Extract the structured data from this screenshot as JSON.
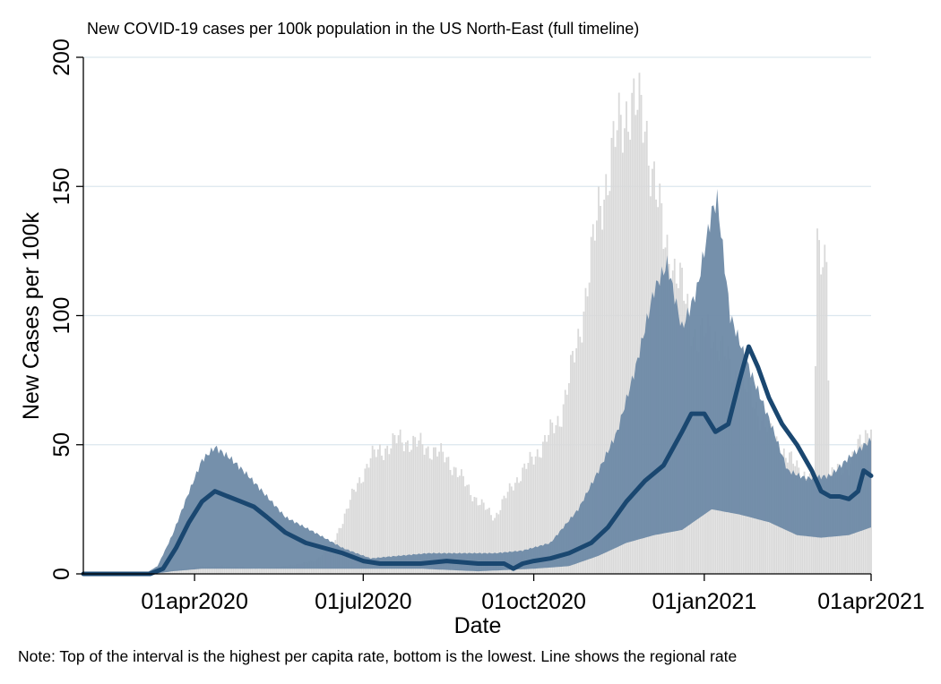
{
  "chart_data": {
    "type": "area",
    "title": "New COVID-19 cases per 100k population in the US North-East (full timeline)",
    "xlabel": "Date",
    "ylabel": "New Cases per 100k",
    "note": "Note: Top of the interval is the highest per capita rate, bottom is the lowest. Line shows the regional rate",
    "ylim": [
      0,
      200
    ],
    "xlim": [
      "2020-02-01",
      "2021-04-01"
    ],
    "y_ticks": [
      0,
      50,
      100,
      150,
      200
    ],
    "x_ticks": [
      {
        "date": "2020-04-01",
        "label": "01apr2020"
      },
      {
        "date": "2020-07-01",
        "label": "01jul2020"
      },
      {
        "date": "2020-10-01",
        "label": "01oct2020"
      },
      {
        "date": "2021-01-01",
        "label": "01jan2021"
      },
      {
        "date": "2021-04-01",
        "label": "01apr2021"
      }
    ],
    "grid": "horizontal",
    "colors": {
      "daily_bars": "#d9d9d9",
      "interval_fill": "#6e8aa6",
      "regional_line": "#1a4770",
      "grid": "#dce6ee"
    },
    "series": [
      {
        "kind": "daily_bars",
        "points": [
          [
            "2020-02-01",
            0
          ],
          [
            "2020-03-01",
            0
          ],
          [
            "2020-03-15",
            1
          ],
          [
            "2020-03-25",
            2
          ],
          [
            "2020-04-05",
            3
          ],
          [
            "2020-04-20",
            3
          ],
          [
            "2020-05-05",
            2
          ],
          [
            "2020-05-20",
            3
          ],
          [
            "2020-06-05",
            5
          ],
          [
            "2020-06-15",
            12
          ],
          [
            "2020-06-25",
            30
          ],
          [
            "2020-07-05",
            45
          ],
          [
            "2020-07-20",
            52
          ],
          [
            "2020-08-01",
            50
          ],
          [
            "2020-08-15",
            45
          ],
          [
            "2020-09-01",
            28
          ],
          [
            "2020-09-10",
            22
          ],
          [
            "2020-09-20",
            35
          ],
          [
            "2020-10-01",
            45
          ],
          [
            "2020-10-15",
            60
          ],
          [
            "2020-10-25",
            90
          ],
          [
            "2020-11-05",
            140
          ],
          [
            "2020-11-15",
            170
          ],
          [
            "2020-11-22",
            183
          ],
          [
            "2020-11-30",
            175
          ],
          [
            "2020-12-10",
            130
          ],
          [
            "2020-12-20",
            110
          ],
          [
            "2020-12-28",
            90
          ],
          [
            "2021-01-05",
            95
          ],
          [
            "2021-01-15",
            80
          ],
          [
            "2021-01-25",
            70
          ],
          [
            "2021-02-05",
            55
          ],
          [
            "2021-02-15",
            45
          ],
          [
            "2021-02-25",
            38
          ],
          [
            "2021-03-01",
            37
          ],
          [
            "2021-03-03",
            125
          ],
          [
            "2021-03-08",
            125
          ],
          [
            "2021-03-10",
            38
          ],
          [
            "2021-03-20",
            42
          ],
          [
            "2021-04-01",
            58
          ]
        ]
      },
      {
        "kind": "interval_high",
        "points": [
          [
            "2020-02-01",
            0
          ],
          [
            "2020-03-05",
            0
          ],
          [
            "2020-03-12",
            3
          ],
          [
            "2020-03-20",
            15
          ],
          [
            "2020-03-28",
            30
          ],
          [
            "2020-04-05",
            44
          ],
          [
            "2020-04-12",
            49
          ],
          [
            "2020-04-20",
            45
          ],
          [
            "2020-04-30",
            38
          ],
          [
            "2020-05-10",
            30
          ],
          [
            "2020-05-20",
            22
          ],
          [
            "2020-06-05",
            16
          ],
          [
            "2020-06-20",
            10
          ],
          [
            "2020-07-05",
            6
          ],
          [
            "2020-07-20",
            7
          ],
          [
            "2020-08-05",
            8
          ],
          [
            "2020-08-20",
            8
          ],
          [
            "2020-09-10",
            8
          ],
          [
            "2020-09-25",
            9
          ],
          [
            "2020-10-10",
            12
          ],
          [
            "2020-10-25",
            25
          ],
          [
            "2020-11-05",
            40
          ],
          [
            "2020-11-15",
            55
          ],
          [
            "2020-11-25",
            80
          ],
          [
            "2020-12-05",
            110
          ],
          [
            "2020-12-12",
            120
          ],
          [
            "2020-12-20",
            95
          ],
          [
            "2020-12-28",
            110
          ],
          [
            "2021-01-05",
            140
          ],
          [
            "2021-01-08",
            145
          ],
          [
            "2021-01-15",
            100
          ],
          [
            "2021-01-25",
            80
          ],
          [
            "2021-02-05",
            60
          ],
          [
            "2021-02-15",
            40
          ],
          [
            "2021-02-25",
            37
          ],
          [
            "2021-03-10",
            38
          ],
          [
            "2021-03-20",
            45
          ],
          [
            "2021-04-01",
            52
          ]
        ]
      },
      {
        "kind": "interval_low",
        "points": [
          [
            "2020-02-01",
            0
          ],
          [
            "2020-03-10",
            0
          ],
          [
            "2020-03-20",
            1
          ],
          [
            "2020-04-05",
            2
          ],
          [
            "2020-05-01",
            2
          ],
          [
            "2020-06-01",
            2
          ],
          [
            "2020-07-01",
            2
          ],
          [
            "2020-08-01",
            2
          ],
          [
            "2020-09-01",
            1
          ],
          [
            "2020-10-01",
            2
          ],
          [
            "2020-10-20",
            3
          ],
          [
            "2020-11-05",
            7
          ],
          [
            "2020-11-20",
            12
          ],
          [
            "2020-12-05",
            15
          ],
          [
            "2020-12-20",
            17
          ],
          [
            "2021-01-05",
            25
          ],
          [
            "2021-01-20",
            23
          ],
          [
            "2021-02-05",
            20
          ],
          [
            "2021-02-20",
            15
          ],
          [
            "2021-03-05",
            14
          ],
          [
            "2021-03-20",
            15
          ],
          [
            "2021-04-01",
            18
          ]
        ]
      },
      {
        "kind": "regional_rate_line",
        "points": [
          [
            "2020-02-01",
            0
          ],
          [
            "2020-03-08",
            0
          ],
          [
            "2020-03-15",
            2
          ],
          [
            "2020-03-22",
            10
          ],
          [
            "2020-03-29",
            20
          ],
          [
            "2020-04-05",
            28
          ],
          [
            "2020-04-12",
            32
          ],
          [
            "2020-04-19",
            30
          ],
          [
            "2020-04-26",
            28
          ],
          [
            "2020-05-03",
            26
          ],
          [
            "2020-05-10",
            22
          ],
          [
            "2020-05-20",
            16
          ],
          [
            "2020-05-31",
            12
          ],
          [
            "2020-06-10",
            10
          ],
          [
            "2020-06-20",
            8
          ],
          [
            "2020-07-01",
            5
          ],
          [
            "2020-07-10",
            4
          ],
          [
            "2020-07-20",
            4
          ],
          [
            "2020-08-01",
            4
          ],
          [
            "2020-08-15",
            5
          ],
          [
            "2020-09-01",
            4
          ],
          [
            "2020-09-15",
            4
          ],
          [
            "2020-09-20",
            2
          ],
          [
            "2020-09-25",
            4
          ],
          [
            "2020-10-01",
            5
          ],
          [
            "2020-10-10",
            6
          ],
          [
            "2020-10-20",
            8
          ],
          [
            "2020-11-01",
            12
          ],
          [
            "2020-11-10",
            18
          ],
          [
            "2020-11-20",
            28
          ],
          [
            "2020-11-30",
            36
          ],
          [
            "2020-12-10",
            42
          ],
          [
            "2020-12-20",
            55
          ],
          [
            "2020-12-25",
            62
          ],
          [
            "2021-01-01",
            62
          ],
          [
            "2021-01-07",
            55
          ],
          [
            "2021-01-14",
            58
          ],
          [
            "2021-01-20",
            75
          ],
          [
            "2021-01-25",
            88
          ],
          [
            "2021-01-30",
            80
          ],
          [
            "2021-02-05",
            68
          ],
          [
            "2021-02-12",
            58
          ],
          [
            "2021-02-20",
            50
          ],
          [
            "2021-02-28",
            40
          ],
          [
            "2021-03-05",
            32
          ],
          [
            "2021-03-10",
            30
          ],
          [
            "2021-03-15",
            30
          ],
          [
            "2021-03-20",
            29
          ],
          [
            "2021-03-25",
            32
          ],
          [
            "2021-03-28",
            40
          ],
          [
            "2021-04-01",
            38
          ]
        ]
      }
    ]
  }
}
